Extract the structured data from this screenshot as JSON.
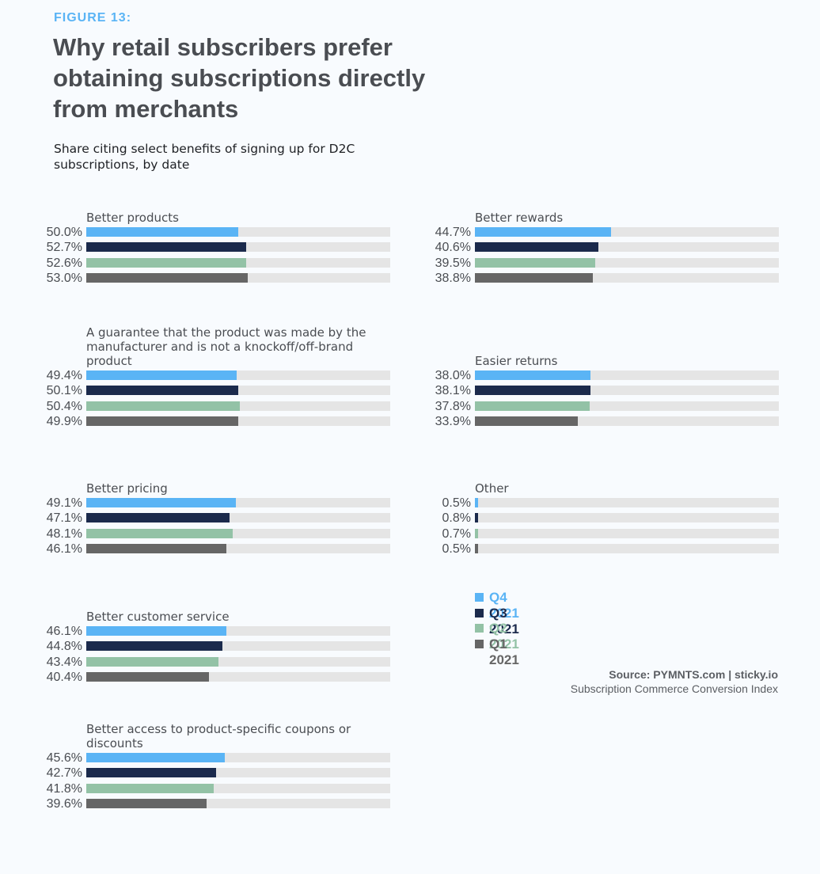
{
  "figure_label": "FIGURE 13:",
  "colors": {
    "background": "#f8fbfe",
    "track": "#e5e5e5",
    "accent": "#5ab4f5"
  },
  "chart_data": {
    "type": "bar",
    "orientation": "horizontal",
    "title": "Why retail subscribers prefer obtaining subscriptions directly from merchants",
    "subtitle": "Share citing select benefits of signing up for D2C subscriptions, by date",
    "xlim": [
      0,
      100
    ],
    "unit": "%",
    "grid": false,
    "legend_position": "bottom-right",
    "series": [
      {
        "name": "Q4 2021",
        "color": "#5ab4f5"
      },
      {
        "name": "Q3 2021",
        "color": "#1b2a4c"
      },
      {
        "name": "Q2 2021",
        "color": "#93c2a6"
      },
      {
        "name": "Q1 2021",
        "color": "#666666"
      }
    ],
    "categories": [
      {
        "label": "Better products",
        "values": [
          50.0,
          52.7,
          52.6,
          53.0
        ],
        "labels": [
          "50.0%",
          "52.7%",
          "52.6%",
          "53.0%"
        ]
      },
      {
        "label": "Better rewards",
        "values": [
          44.7,
          40.6,
          39.5,
          38.8
        ],
        "labels": [
          "44.7%",
          "40.6%",
          "39.5%",
          "38.8%"
        ]
      },
      {
        "label": "A guarantee that the product was made by the manufacturer and is not a knockoff/off-brand product",
        "values": [
          49.4,
          50.1,
          50.4,
          49.9
        ],
        "labels": [
          "49.4%",
          "50.1%",
          "50.4%",
          "49.9%"
        ]
      },
      {
        "label": "Easier returns",
        "values": [
          38.0,
          38.1,
          37.8,
          33.9
        ],
        "labels": [
          "38.0%",
          "38.1%",
          "37.8%",
          "33.9%"
        ]
      },
      {
        "label": "Better pricing",
        "values": [
          49.1,
          47.1,
          48.1,
          46.1
        ],
        "labels": [
          "49.1%",
          "47.1%",
          "48.1%",
          "46.1%"
        ]
      },
      {
        "label": "Other",
        "values": [
          0.5,
          0.8,
          0.7,
          0.5
        ],
        "labels": [
          "0.5%",
          "0.8%",
          "0.7%",
          "0.5%"
        ]
      },
      {
        "label": "Better customer service",
        "values": [
          46.1,
          44.8,
          43.4,
          40.4
        ],
        "labels": [
          "46.1%",
          "44.8%",
          "43.4%",
          "40.4%"
        ]
      },
      {
        "label": "Better access to product-specific coupons or discounts",
        "values": [
          45.6,
          42.7,
          41.8,
          39.6
        ],
        "labels": [
          "45.6%",
          "42.7%",
          "41.8%",
          "39.6%"
        ]
      }
    ]
  },
  "source": {
    "line1": "Source: PYMNTS.com  |  sticky.io",
    "line2": "Subscription Commerce Conversion Index"
  }
}
